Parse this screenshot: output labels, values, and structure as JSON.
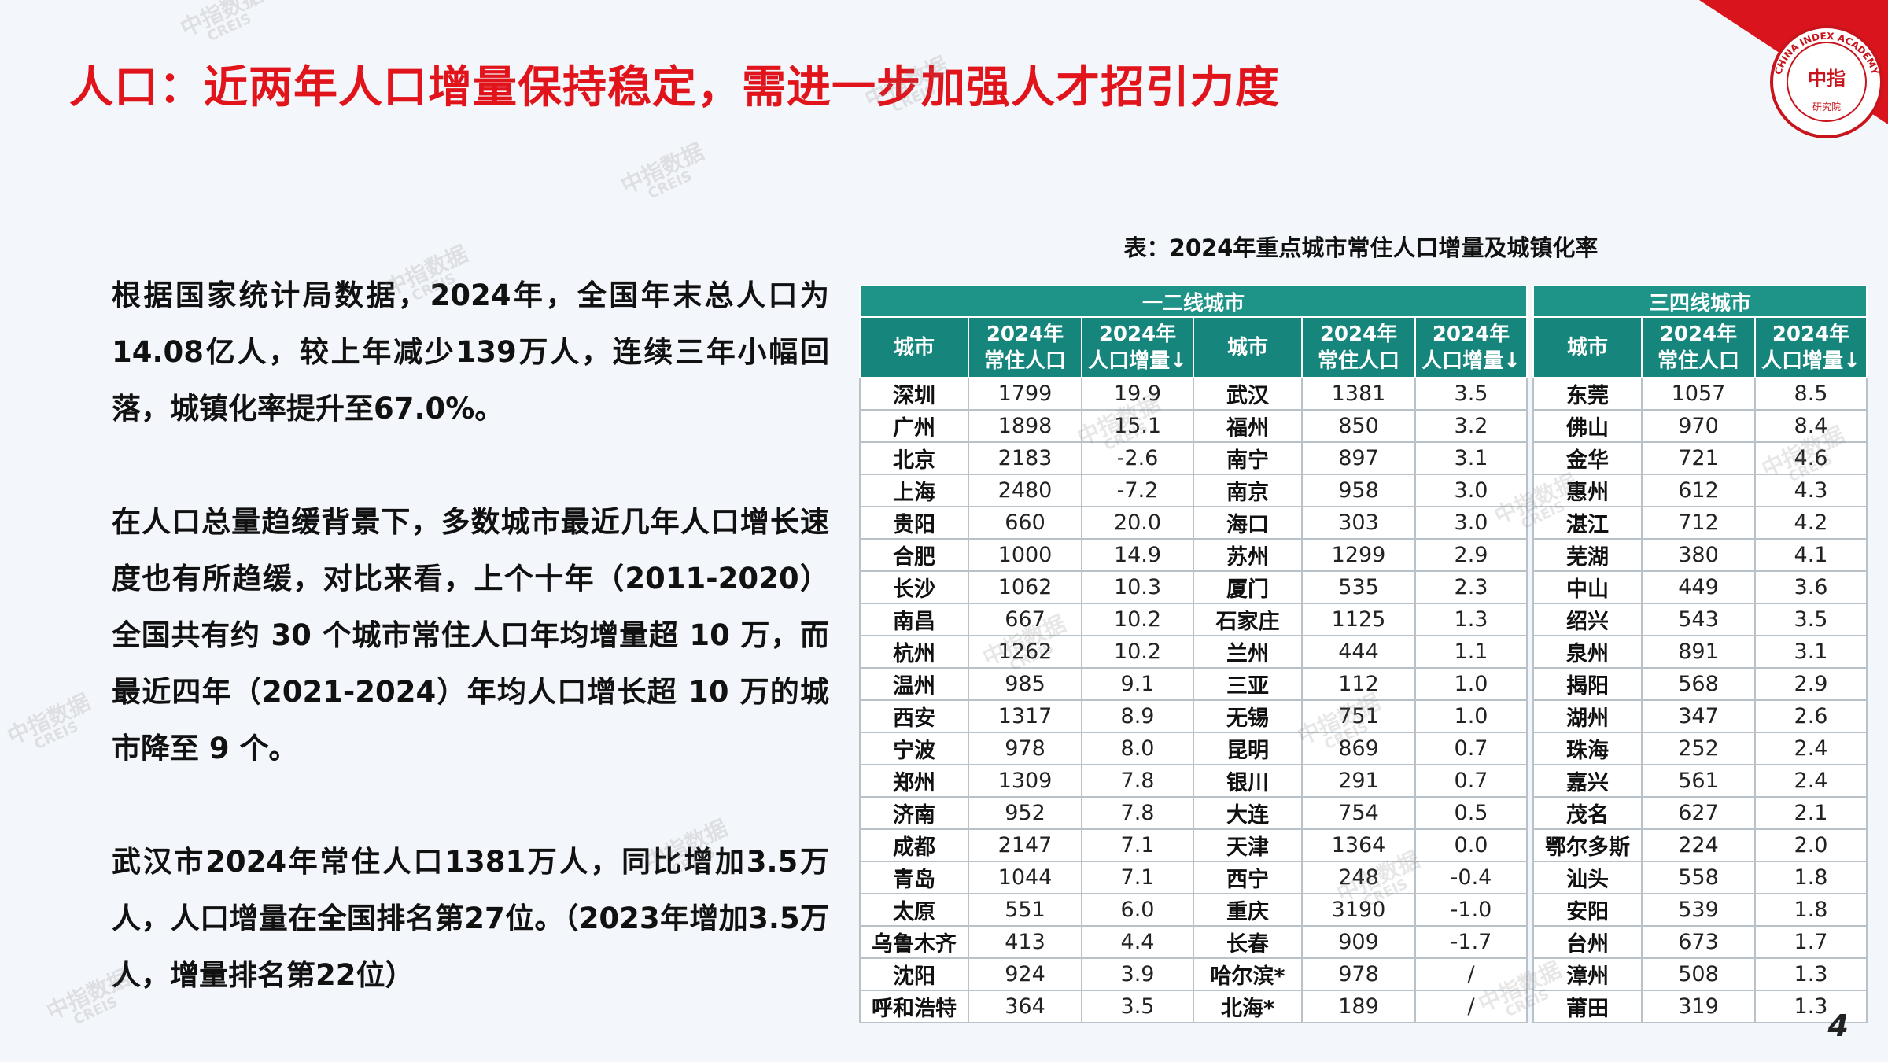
{
  "header": {
    "title": "人口：近两年人口增量保持稳定，需进一步加强人才招引力度"
  },
  "logo": {
    "ring_text": "CHINA INDEX ACADEMY",
    "mark": "中指",
    "sub": "研究院"
  },
  "paragraphs": [
    "根据国家统计局数据，2024年，全国年末总人口为14.08亿人，较上年减少139万人，连续三年小幅回落，城镇化率提升至67.0%。",
    "在人口总量趋缓背景下，多数城市最近几年人口增长速度也有所趋缓，对比来看，上个十年（2011-2020）全国共有约 30 个城市常住人口年均增量超 10 万，而最近四年（2021-2024）年均人口增长超 10 万的城市降至 9 个。",
    "武汉市2024年常住人口1381万人，同比增加3.5万人，人口增量在全国排名第27位。（2023年增加3.5万人，增量排名第22位）"
  ],
  "table": {
    "caption": "表：2024年重点城市常住人口增量及城镇化率",
    "groups": [
      "一二线城市",
      "三四线城市"
    ],
    "columns": [
      [
        "城市"
      ],
      [
        "2024年",
        "常住人口"
      ],
      [
        "2024年",
        "人口增量↓"
      ],
      [
        "城市"
      ],
      [
        "2024年",
        "常住人口"
      ],
      [
        "2024年",
        "人口增量↓"
      ],
      [
        "城市"
      ],
      [
        "2024年",
        "常住人口"
      ],
      [
        "2024年",
        "人口增量↓"
      ]
    ],
    "rows": [
      [
        "深圳",
        "1799",
        "19.9",
        "武汉",
        "1381",
        "3.5",
        "东莞",
        "1057",
        "8.5"
      ],
      [
        "广州",
        "1898",
        "15.1",
        "福州",
        "850",
        "3.2",
        "佛山",
        "970",
        "8.4"
      ],
      [
        "北京",
        "2183",
        "-2.6",
        "南宁",
        "897",
        "3.1",
        "金华",
        "721",
        "4.6"
      ],
      [
        "上海",
        "2480",
        "-7.2",
        "南京",
        "958",
        "3.0",
        "惠州",
        "612",
        "4.3"
      ],
      [
        "贵阳",
        "660",
        "20.0",
        "海口",
        "303",
        "3.0",
        "湛江",
        "712",
        "4.2"
      ],
      [
        "合肥",
        "1000",
        "14.9",
        "苏州",
        "1299",
        "2.9",
        "芜湖",
        "380",
        "4.1"
      ],
      [
        "长沙",
        "1062",
        "10.3",
        "厦门",
        "535",
        "2.3",
        "中山",
        "449",
        "3.6"
      ],
      [
        "南昌",
        "667",
        "10.2",
        "石家庄",
        "1125",
        "1.3",
        "绍兴",
        "543",
        "3.5"
      ],
      [
        "杭州",
        "1262",
        "10.2",
        "兰州",
        "444",
        "1.1",
        "泉州",
        "891",
        "3.1"
      ],
      [
        "温州",
        "985",
        "9.1",
        "三亚",
        "112",
        "1.0",
        "揭阳",
        "568",
        "2.9"
      ],
      [
        "西安",
        "1317",
        "8.9",
        "无锡",
        "751",
        "1.0",
        "湖州",
        "347",
        "2.6"
      ],
      [
        "宁波",
        "978",
        "8.0",
        "昆明",
        "869",
        "0.7",
        "珠海",
        "252",
        "2.4"
      ],
      [
        "郑州",
        "1309",
        "7.8",
        "银川",
        "291",
        "0.7",
        "嘉兴",
        "561",
        "2.4"
      ],
      [
        "济南",
        "952",
        "7.8",
        "大连",
        "754",
        "0.5",
        "茂名",
        "627",
        "2.1"
      ],
      [
        "成都",
        "2147",
        "7.1",
        "天津",
        "1364",
        "0.0",
        "鄂尔多斯",
        "224",
        "2.0"
      ],
      [
        "青岛",
        "1044",
        "7.1",
        "西宁",
        "248",
        "-0.4",
        "汕头",
        "558",
        "1.8"
      ],
      [
        "太原",
        "551",
        "6.0",
        "重庆",
        "3190",
        "-1.0",
        "安阳",
        "539",
        "1.8"
      ],
      [
        "乌鲁木齐",
        "413",
        "4.4",
        "长春",
        "909",
        "-1.7",
        "台州",
        "673",
        "1.7"
      ],
      [
        "沈阳",
        "924",
        "3.9",
        "哈尔滨*",
        "978",
        "/",
        "漳州",
        "508",
        "1.3"
      ],
      [
        "呼和浩特",
        "364",
        "3.5",
        "北海*",
        "189",
        "/",
        "莆田",
        "319",
        "1.3"
      ]
    ]
  },
  "watermark": [
    "中指数据",
    "CREIS"
  ],
  "page_number": "4"
}
